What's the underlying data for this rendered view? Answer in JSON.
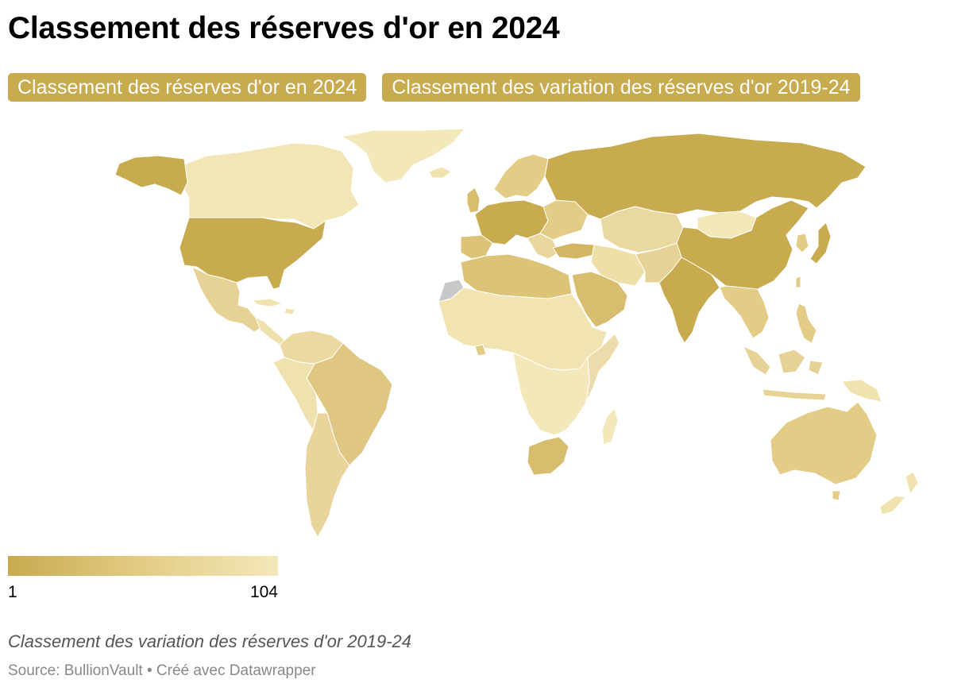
{
  "header": {
    "title": "Classement des réserves d'or en 2024"
  },
  "tabs": [
    {
      "label": "Classement des réserves d'or en 2024",
      "active": true
    },
    {
      "label": "Classement des variation des réserves d'or 2019-24",
      "active": false
    }
  ],
  "colors": {
    "tab_bg": "#c8aa4f",
    "scale_low_rank": "#c8aa4f",
    "scale_mid_rank": "#e3cc85",
    "scale_high_rank": "#f3e8b9",
    "no_data": "#c8c8c8",
    "border": "#ffffff"
  },
  "legend": {
    "min_label": "1",
    "max_label": "104"
  },
  "footer": {
    "notes": "Classement des variation des réserves d'or 2019-24",
    "source": "Source: BullionVault • Créé avec Datawrapper"
  }
}
